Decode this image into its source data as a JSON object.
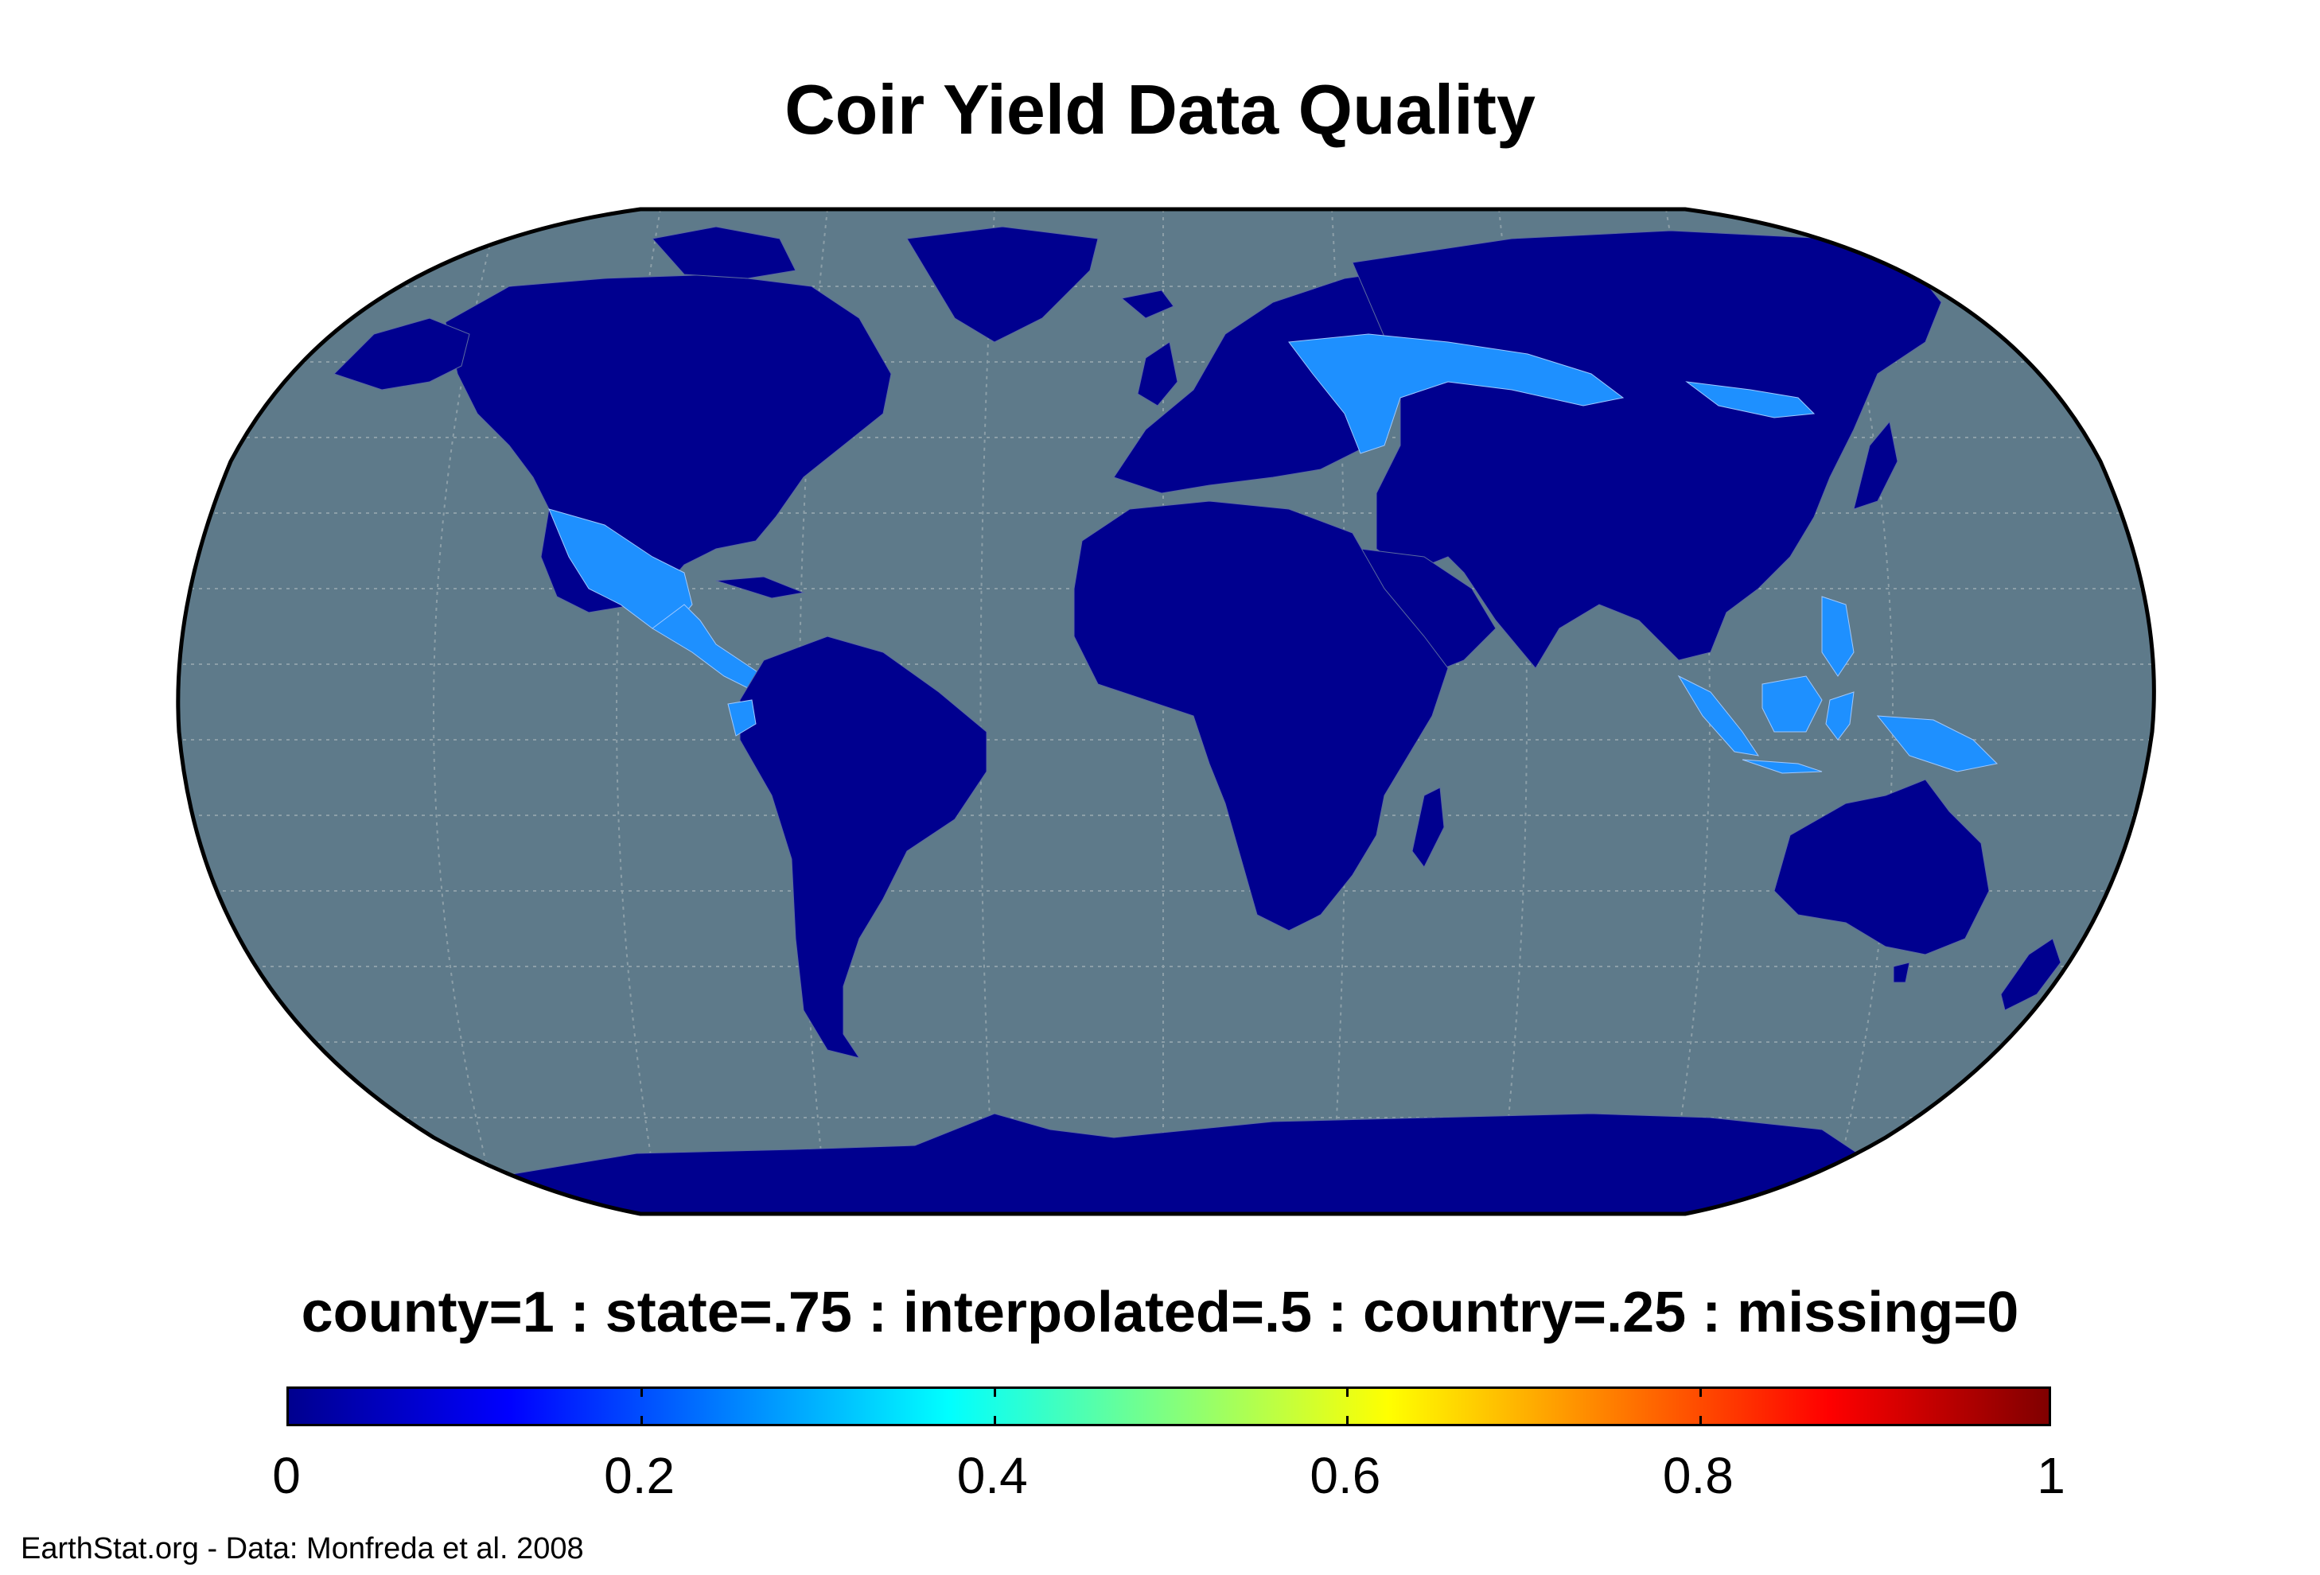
{
  "title": "Coir Yield Data Quality",
  "legend": {
    "caption": "county=1 : state=.75 : interpolated=.5 : country=.25 : missing=0",
    "colormap": "jet",
    "range": [
      0,
      1
    ],
    "ticks": [
      "0",
      "0.2",
      "0.4",
      "0.6",
      "0.8",
      "1"
    ],
    "tick_values": [
      0,
      0.2,
      0.4,
      0.6,
      0.8,
      1
    ]
  },
  "credit": "EarthStat.org - Data: Monfreda et al. 2008",
  "map": {
    "projection": "Robinson",
    "colors": {
      "ocean": "#5e7a8a",
      "land_country_level": "#00008f",
      "land_state_level": "#1e90ff",
      "graticule": "#8c9fa8",
      "outline": "#000000"
    },
    "state_level_regions": [
      "Russia (southwest)",
      "Mexico",
      "Central America",
      "Ecuador",
      "Indonesia",
      "Philippines",
      "Papua New Guinea"
    ]
  }
}
